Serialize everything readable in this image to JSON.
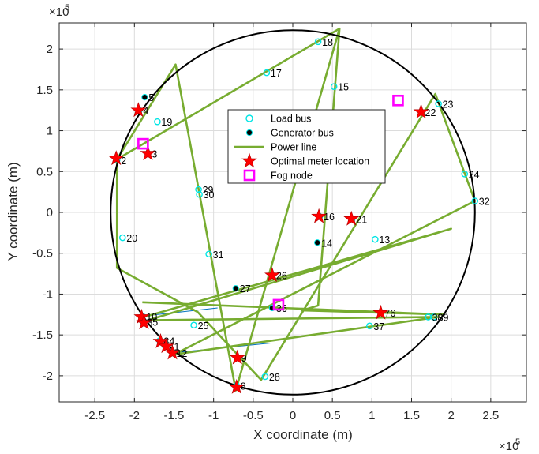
{
  "chart_data": {
    "type": "scatter",
    "xlabel": "X coordinate (m)",
    "ylabel": "Y coordinate (m)",
    "x_multiplier": "×10",
    "x_multiplier_exp": "5",
    "y_multiplier": "×10",
    "y_multiplier_exp": "5",
    "xlim": [
      -2.95,
      2.95
    ],
    "ylim": [
      -2.32,
      2.32
    ],
    "xticks": [
      -2.5,
      -2,
      -1.5,
      -1,
      -0.5,
      0,
      0.5,
      1,
      1.5,
      2,
      2.5
    ],
    "xtick_labels": [
      "-2.5",
      "-2",
      "-1.5",
      "-1",
      "-0.5",
      "0",
      "0.5",
      "1",
      "1.5",
      "2",
      "2.5"
    ],
    "yticks": [
      -2,
      -1.5,
      -1,
      -0.5,
      0,
      0.5,
      1,
      1.5,
      2
    ],
    "ytick_labels": [
      "-2",
      "-1.5",
      "-1",
      "-0.5",
      "0",
      "0.5",
      "1",
      "1.5",
      "2"
    ],
    "grid": true,
    "legend_position": "top-center",
    "legend": [
      {
        "label": "Load bus",
        "marker": "circle-open",
        "color": "#00e5e5"
      },
      {
        "label": "Generator bus",
        "marker": "circle-filled",
        "color": "#000000"
      },
      {
        "label": "Power line",
        "marker": "line",
        "color": "#77ac30"
      },
      {
        "label": "Optimal meter location",
        "marker": "star",
        "color": "#ff0000"
      },
      {
        "label": "Fog node",
        "marker": "square-open",
        "color": "#ff00ff"
      }
    ],
    "circle_radius": 2.3,
    "colors": {
      "load": "#00e5e5",
      "generator": "#000000",
      "line": "#77ac30",
      "meter": "#ff0000",
      "fog": "#ff00ff",
      "circle": "#000000",
      "thin_line": "#0072bd"
    },
    "buses": [
      {
        "id": "2",
        "x": -2.22,
        "y": 0.64,
        "type": "load"
      },
      {
        "id": "3",
        "x": -1.83,
        "y": 0.72,
        "type": "load"
      },
      {
        "id": "4",
        "x": -1.94,
        "y": 1.25,
        "type": "load"
      },
      {
        "id": "5",
        "x": -1.87,
        "y": 1.41,
        "type": "generator"
      },
      {
        "id": "8",
        "x": -0.71,
        "y": -2.12,
        "type": "load"
      },
      {
        "id": "9",
        "x": -0.7,
        "y": -1.78,
        "type": "load"
      },
      {
        "id": "10",
        "x": -1.9,
        "y": -1.27,
        "type": "load"
      },
      {
        "id": "11",
        "x": -1.61,
        "y": -1.64,
        "type": "load"
      },
      {
        "id": "12",
        "x": -1.52,
        "y": -1.72,
        "type": "load"
      },
      {
        "id": "13",
        "x": 1.04,
        "y": -0.33,
        "type": "load"
      },
      {
        "id": "14",
        "x": 0.31,
        "y": -0.37,
        "type": "generator"
      },
      {
        "id": "15",
        "x": 0.52,
        "y": 1.54,
        "type": "load"
      },
      {
        "id": "16",
        "x": 0.34,
        "y": -0.05,
        "type": "load"
      },
      {
        "id": "17",
        "x": -0.33,
        "y": 1.71,
        "type": "load"
      },
      {
        "id": "18",
        "x": 0.32,
        "y": 2.09,
        "type": "load"
      },
      {
        "id": "19",
        "x": -1.71,
        "y": 1.11,
        "type": "load"
      },
      {
        "id": "20",
        "x": -2.15,
        "y": -0.31,
        "type": "load"
      },
      {
        "id": "21",
        "x": 0.75,
        "y": -0.08,
        "type": "load"
      },
      {
        "id": "22",
        "x": 1.62,
        "y": 1.23,
        "type": "load"
      },
      {
        "id": "23",
        "x": 1.84,
        "y": 1.33,
        "type": "load"
      },
      {
        "id": "24",
        "x": 2.17,
        "y": 0.47,
        "type": "load"
      },
      {
        "id": "25",
        "x": -1.25,
        "y": -1.38,
        "type": "load"
      },
      {
        "id": "26",
        "x": -0.26,
        "y": -0.77,
        "type": "load"
      },
      {
        "id": "27",
        "x": -0.72,
        "y": -0.93,
        "type": "generator"
      },
      {
        "id": "28",
        "x": -0.35,
        "y": -2.01,
        "type": "load"
      },
      {
        "id": "29",
        "x": -1.19,
        "y": 0.28,
        "type": "load"
      },
      {
        "id": "30",
        "x": -1.18,
        "y": 0.22,
        "type": "load"
      },
      {
        "id": "31",
        "x": -1.06,
        "y": -0.51,
        "type": "load"
      },
      {
        "id": "32",
        "x": 2.3,
        "y": 0.14,
        "type": "load"
      },
      {
        "id": "34",
        "x": -1.68,
        "y": -1.57,
        "type": "load"
      },
      {
        "id": "35",
        "x": -1.89,
        "y": -1.34,
        "type": "load"
      },
      {
        "id": "36",
        "x": -0.26,
        "y": -1.17,
        "type": "generator"
      },
      {
        "id": "37",
        "x": 0.97,
        "y": -1.39,
        "type": "load"
      },
      {
        "id": "38",
        "x": 1.71,
        "y": -1.28,
        "type": "load"
      },
      {
        "id": "39",
        "x": 1.78,
        "y": -1.28,
        "type": "load"
      },
      {
        "id": "76",
        "x": 1.11,
        "y": -1.23,
        "type": "load"
      }
    ],
    "power_lines": [
      [
        [
          -2.22,
          0.65
        ],
        [
          -1.48,
          1.81
        ],
        [
          -0.72,
          -2.18
        ],
        [
          0.59,
          2.25
        ],
        [
          0.32,
          -1.14
        ],
        [
          0.12,
          -1.2
        ],
        [
          1.9,
          -1.25
        ],
        [
          -1.9,
          -1.1
        ]
      ],
      [
        [
          -2.22,
          0.65
        ],
        [
          0.59,
          2.25
        ]
      ],
      [
        [
          -2.22,
          0.65
        ],
        [
          -2.22,
          -0.68
        ],
        [
          -1.2,
          -1.22
        ],
        [
          -0.4,
          -2.05
        ],
        [
          1.8,
          1.45
        ],
        [
          2.3,
          0.14
        ],
        [
          -1.5,
          -1.74
        ],
        [
          1.84,
          -1.28
        ],
        [
          -1.83,
          -1.32
        ],
        [
          2.0,
          -0.2
        ],
        [
          -1.95,
          -1.3
        ]
      ]
    ],
    "thin_lines": [
      [
        [
          -1.9,
          -1.27
        ],
        [
          -0.95,
          -1.17
        ]
      ],
      [
        [
          -1.52,
          -1.72
        ],
        [
          -0.28,
          -1.6
        ]
      ]
    ],
    "meters": [
      {
        "x": -2.23,
        "y": 0.66
      },
      {
        "x": -1.83,
        "y": 0.72
      },
      {
        "x": -1.95,
        "y": 1.25
      },
      {
        "x": -0.71,
        "y": -2.14
      },
      {
        "x": -0.7,
        "y": -1.78
      },
      {
        "x": -1.91,
        "y": -1.28
      },
      {
        "x": -1.88,
        "y": -1.35
      },
      {
        "x": -1.67,
        "y": -1.58
      },
      {
        "x": -1.6,
        "y": -1.64
      },
      {
        "x": -1.52,
        "y": -1.72
      },
      {
        "x": 0.33,
        "y": -0.05
      },
      {
        "x": 0.74,
        "y": -0.08
      },
      {
        "x": 1.62,
        "y": 1.23
      },
      {
        "x": -0.26,
        "y": -0.77
      },
      {
        "x": 1.11,
        "y": -1.23
      }
    ],
    "fog_nodes": [
      {
        "x": -1.89,
        "y": 0.84
      },
      {
        "x": 1.33,
        "y": 1.37
      },
      {
        "x": -0.18,
        "y": -1.13
      }
    ]
  }
}
